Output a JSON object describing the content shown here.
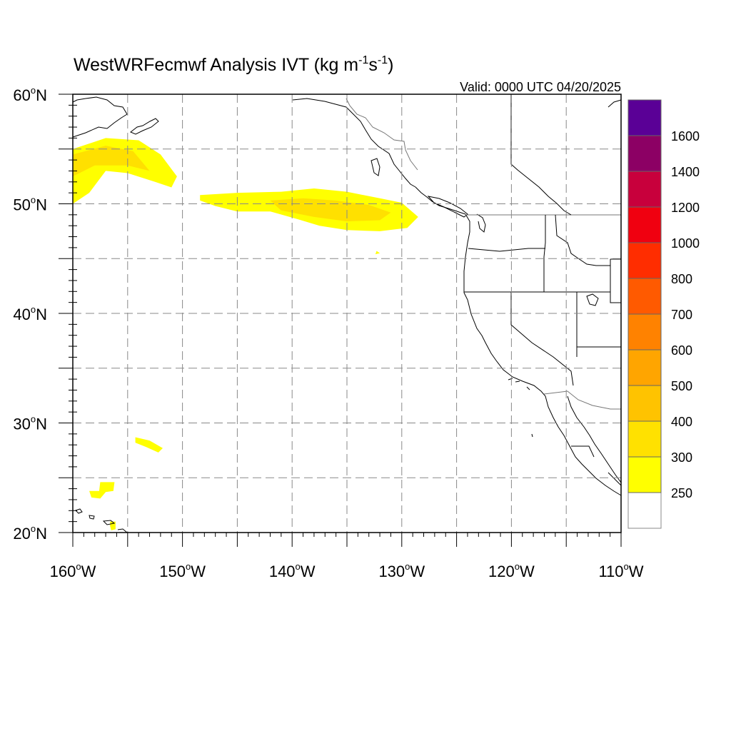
{
  "title": {
    "base": "WestWRFecmwf Analysis IVT (kg m",
    "sup1": "-1",
    "mid": "s",
    "sup2": "-1",
    "end": ")"
  },
  "valid_label": "Valid: 0000 UTC 04/20/2025",
  "map": {
    "lon_range": [
      -160,
      -110
    ],
    "lat_range": [
      20,
      60
    ],
    "grid": "dashed",
    "lat_ticks": [
      {
        "value": 60,
        "num": "60",
        "suffix": "N"
      },
      {
        "value": 50,
        "num": "50",
        "suffix": "N"
      },
      {
        "value": 40,
        "num": "40",
        "suffix": "N"
      },
      {
        "value": 30,
        "num": "30",
        "suffix": "N"
      },
      {
        "value": 20,
        "num": "20",
        "suffix": "N"
      }
    ],
    "lon_ticks": [
      {
        "value": -160,
        "num": "160",
        "suffix": "W"
      },
      {
        "value": -150,
        "num": "150",
        "suffix": "W"
      },
      {
        "value": -140,
        "num": "140",
        "suffix": "W"
      },
      {
        "value": -130,
        "num": "130",
        "suffix": "W"
      },
      {
        "value": -120,
        "num": "120",
        "suffix": "W"
      },
      {
        "value": -110,
        "num": "110",
        "suffix": "W"
      }
    ],
    "ivt_regions": [
      {
        "level": 250,
        "color": "#ffff00",
        "points": [
          [
            -160,
            55
          ],
          [
            -157,
            56
          ],
          [
            -154,
            55.8
          ],
          [
            -152,
            54.5
          ],
          [
            -150.5,
            52.5
          ],
          [
            -151,
            51.5
          ],
          [
            -152.5,
            52
          ],
          [
            -155,
            52.8
          ],
          [
            -157,
            53
          ],
          [
            -158.5,
            51
          ],
          [
            -160,
            50
          ]
        ]
      },
      {
        "level": 300,
        "color": "#ffe000",
        "points": [
          [
            -160,
            54.5
          ],
          [
            -157,
            55.3
          ],
          [
            -154.5,
            54.8
          ],
          [
            -153,
            53
          ],
          [
            -155,
            53.5
          ],
          [
            -158,
            53.5
          ],
          [
            -160,
            52.5
          ]
        ]
      },
      {
        "level": 250,
        "color": "#ffff00",
        "points": [
          [
            -148.4,
            50.8
          ],
          [
            -145,
            51
          ],
          [
            -141,
            51.1
          ],
          [
            -138,
            51.4
          ],
          [
            -135,
            51.1
          ],
          [
            -132,
            50.5
          ],
          [
            -130,
            50.1
          ],
          [
            -128.5,
            48.8
          ],
          [
            -129.5,
            47.8
          ],
          [
            -132,
            47.5
          ],
          [
            -135,
            47.6
          ],
          [
            -137.5,
            48
          ],
          [
            -139.5,
            48.6
          ],
          [
            -142,
            49.3
          ],
          [
            -145,
            49.3
          ],
          [
            -147,
            49.8
          ],
          [
            -148.4,
            50.3
          ]
        ]
      },
      {
        "level": 300,
        "color": "#ffe000",
        "points": [
          [
            -142,
            50.3
          ],
          [
            -139,
            50.5
          ],
          [
            -136,
            50.3
          ],
          [
            -133,
            49.9
          ],
          [
            -131,
            49.2
          ],
          [
            -132,
            48.5
          ],
          [
            -135,
            48.4
          ],
          [
            -138,
            48.8
          ],
          [
            -141,
            49.4
          ]
        ]
      },
      {
        "level": 250,
        "color": "#ffff00",
        "points": [
          [
            -132.3,
            45.7
          ],
          [
            -132,
            45.5
          ],
          [
            -132.4,
            45.4
          ]
        ]
      },
      {
        "level": 250,
        "color": "#ffff00",
        "points": [
          [
            -154.3,
            28.7
          ],
          [
            -153,
            28.4
          ],
          [
            -151.8,
            27.7
          ],
          [
            -152.2,
            27.3
          ],
          [
            -153.3,
            27.8
          ],
          [
            -154.3,
            28.2
          ]
        ]
      },
      {
        "level": 250,
        "color": "#ffff00",
        "points": [
          [
            -157.5,
            24.6
          ],
          [
            -156.2,
            24.6
          ],
          [
            -156.3,
            23.8
          ],
          [
            -157,
            23.7
          ],
          [
            -157.5,
            23.1
          ],
          [
            -158.3,
            23.2
          ],
          [
            -158.5,
            23.8
          ],
          [
            -157.6,
            23.8
          ]
        ]
      },
      {
        "level": 250,
        "color": "#ffff00",
        "points": [
          [
            -156.6,
            21
          ],
          [
            -156.1,
            21
          ],
          [
            -156.1,
            20.3
          ],
          [
            -156.5,
            20.2
          ],
          [
            -156.6,
            20.6
          ]
        ]
      }
    ]
  },
  "colorbar": {
    "colors": [
      "#ffffff",
      "#ffff00",
      "#ffe100",
      "#ffc300",
      "#ffa500",
      "#ff8200",
      "#ff5a00",
      "#ff2d00",
      "#f00010",
      "#c8003c",
      "#8c0064",
      "#5a0096"
    ],
    "labels": [
      "250",
      "300",
      "400",
      "500",
      "600",
      "700",
      "800",
      "1000",
      "1200",
      "1400",
      "1600"
    ]
  }
}
